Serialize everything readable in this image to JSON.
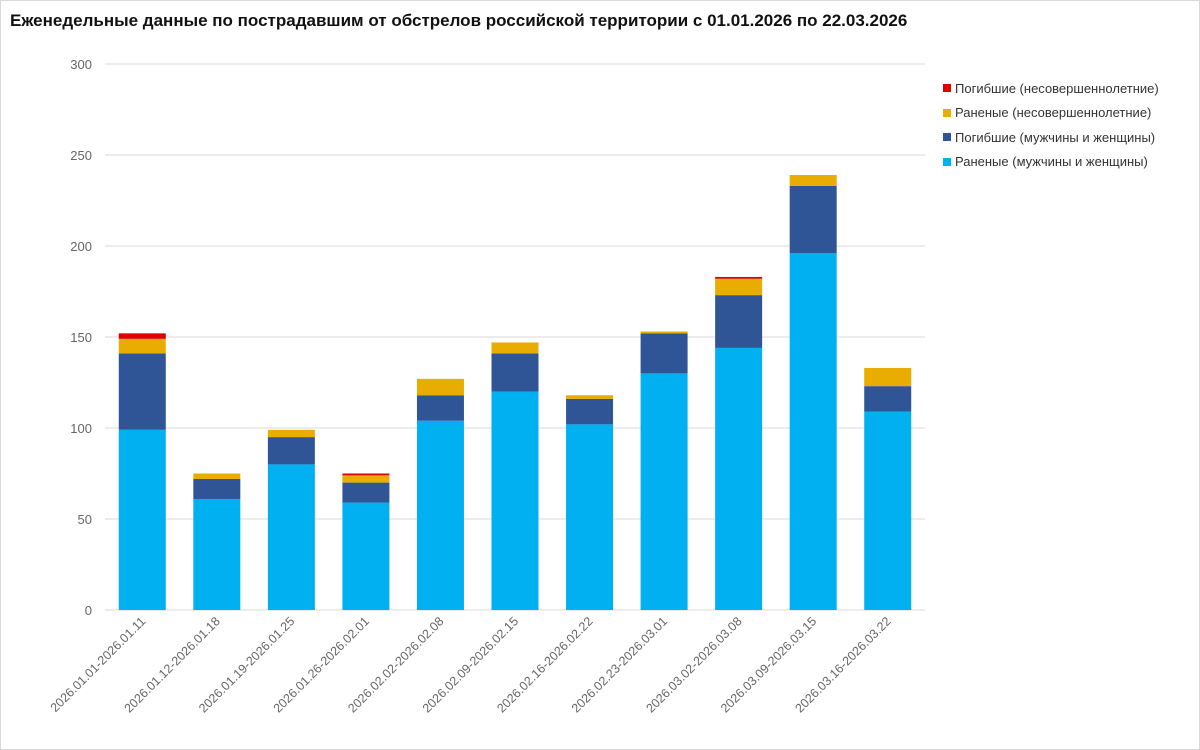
{
  "chart_data": {
    "type": "bar",
    "stacked": true,
    "title": "Еженедельные данные по пострадавшим от обстрелов российской территории с 01.01.2026 по 22.03.2026",
    "xlabel": "",
    "ylabel": "",
    "ylim": [
      0,
      300
    ],
    "yticks": [
      0,
      50,
      100,
      150,
      200,
      250,
      300
    ],
    "grid": true,
    "legend_position": "right",
    "categories": [
      "2026.01.01-2026.01.11",
      "2026.01.12-2026.01.18",
      "2026.01.19-2026.01.25",
      "2026.01.26-2026.02.01",
      "2026.02.02-2026.02.08",
      "2026.02.09-2026.02.15",
      "2026.02.16-2026.02.22",
      "2026.02.23-2026.03.01",
      "2026.03.02-2026.03.08",
      "2026.03.09-2026.03.15",
      "2026.03.16-2026.03.22"
    ],
    "series": [
      {
        "name": "Раненые (мужчины и женщины)",
        "color": "#00b0f0",
        "values": [
          99,
          61,
          80,
          59,
          104,
          120,
          102,
          130,
          144,
          196,
          109
        ]
      },
      {
        "name": "Погибшие (мужчины и женщины)",
        "color": "#2f5597",
        "values": [
          42,
          11,
          15,
          11,
          14,
          21,
          14,
          22,
          29,
          37,
          14
        ]
      },
      {
        "name": "Раненые (несовершеннолетние)",
        "color": "#e8ad00",
        "values": [
          8,
          3,
          4,
          4,
          9,
          6,
          2,
          1,
          9,
          6,
          10
        ]
      },
      {
        "name": "Погибшие (несовершеннолетние)",
        "color": "#e00000",
        "values": [
          3,
          0,
          0,
          1,
          0,
          0,
          0,
          0,
          1,
          0,
          0
        ]
      }
    ]
  }
}
